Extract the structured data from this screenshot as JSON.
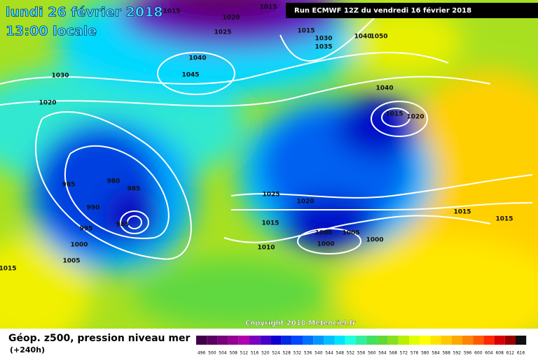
{
  "header": {
    "date": "lundi 26 février 2018",
    "time": "13:00 locale",
    "run": "Run ECMWF 12Z du vendredi 16 février 2018"
  },
  "isobar_labels": [
    "1015",
    "1020",
    "1015",
    "1025",
    "1040",
    "1045",
    "1030",
    "1020",
    "1015",
    "1030",
    "1035",
    "1040",
    "1050",
    "1040",
    "1015",
    "1020",
    "985",
    "980",
    "985",
    "990",
    "995",
    "1000",
    "1005",
    "985",
    "1025",
    "1020",
    "1015",
    "1010",
    "1000",
    "1005",
    "1000",
    "1000",
    "1015",
    "1015",
    "1015"
  ],
  "copyright": "Copyright 2018 Meteociel.fr",
  "legend": {
    "title": "Géop. z500, pression niveau mer",
    "lead": "(+240h)",
    "scale": [
      496,
      500,
      504,
      508,
      512,
      516,
      520,
      524,
      528,
      532,
      536,
      540,
      544,
      548,
      552,
      556,
      560,
      564,
      568,
      572,
      576,
      580,
      584,
      588,
      592,
      596,
      600,
      604,
      608,
      612,
      616
    ]
  }
}
